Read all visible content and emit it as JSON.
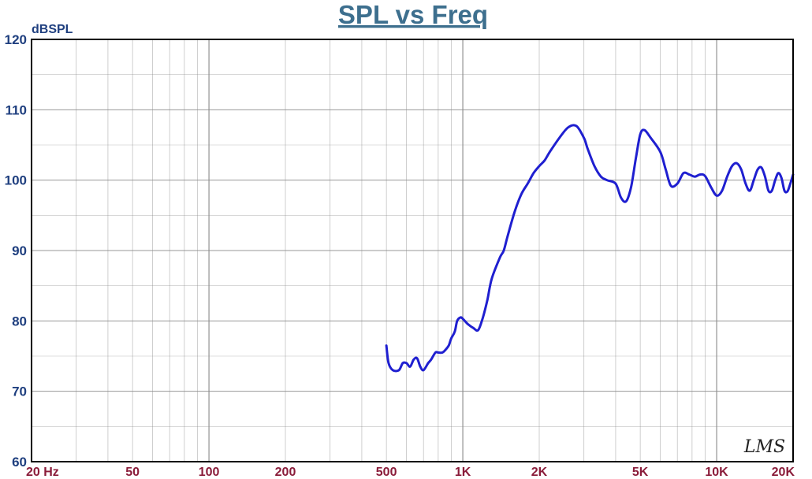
{
  "chart_data": {
    "type": "line",
    "title": "SPL vs Freq",
    "ylabel": "dBSPL",
    "xlabel": "",
    "x_scale": "log",
    "xlim": [
      20,
      20000
    ],
    "ylim": [
      60,
      120
    ],
    "grid": true,
    "y_ticks": [
      60,
      70,
      80,
      90,
      100,
      110,
      120
    ],
    "y_tick_labels": [
      "60",
      "70",
      "80",
      "90",
      "100",
      "110",
      "120"
    ],
    "x_ticks": [
      20,
      50,
      100,
      200,
      500,
      1000,
      2000,
      5000,
      10000,
      20000
    ],
    "x_tick_labels": [
      "20  Hz",
      "50",
      "100",
      "200",
      "500",
      "1K",
      "2K",
      "5K",
      "10K",
      "20K"
    ],
    "watermark": "LMS",
    "colors": {
      "line": "#1f1fd0",
      "title": "#3d6f8e",
      "axis_text": "#1f3f7f",
      "x_text": "#8a1c3a",
      "grid": "#8c8c8c",
      "frame": "#000000"
    },
    "series": [
      {
        "x": [
          500,
          510,
          530,
          560,
          580,
          600,
          620,
          640,
          660,
          680,
          700,
          730,
          750,
          780,
          800,
          830,
          850,
          880,
          900,
          930,
          950,
          980,
          1000,
          1050,
          1100,
          1150,
          1200,
          1250,
          1300,
          1400,
          1450,
          1500,
          1600,
          1700,
          1800,
          1900,
          2000,
          2100,
          2200,
          2400,
          2600,
          2800,
          3000,
          3100,
          3300,
          3500,
          3700,
          4000,
          4200,
          4400,
          4600,
          4800,
          5000,
          5200,
          5500,
          6000,
          6300,
          6600,
          7000,
          7400,
          7800,
          8200,
          8600,
          9000,
          9500,
          10000,
          10500,
          11000,
          11500,
          12000,
          12500,
          13000,
          13500,
          14000,
          14500,
          15000,
          15500,
          16000,
          16500,
          17000,
          17500,
          18000,
          18500,
          19000,
          19500,
          20000
        ],
        "y": [
          76.5,
          74,
          73,
          73,
          74,
          74,
          73.5,
          74.5,
          74.7,
          73.5,
          73,
          74,
          74.5,
          75.5,
          75.5,
          75.5,
          75.8,
          76.5,
          77.5,
          78.5,
          80,
          80.5,
          80.3,
          79.5,
          79,
          78.7,
          80.5,
          83,
          86,
          89,
          90,
          92,
          95.5,
          98,
          99.5,
          101,
          102,
          102.8,
          104,
          106,
          107.5,
          107.7,
          106,
          104.5,
          102,
          100.5,
          100,
          99.5,
          97.5,
          97,
          99,
          103,
          106.5,
          107.1,
          106,
          104,
          101.5,
          99.2,
          99.5,
          101,
          100.8,
          100.5,
          100.8,
          100.6,
          99,
          97.8,
          98.5,
          100.5,
          102,
          102.4,
          101.5,
          99.5,
          98.5,
          100,
          101.5,
          101.8,
          100.5,
          98.5,
          98.5,
          100,
          101,
          100.3,
          98.5,
          98.4,
          99.5,
          100.8
        ]
      }
    ]
  }
}
